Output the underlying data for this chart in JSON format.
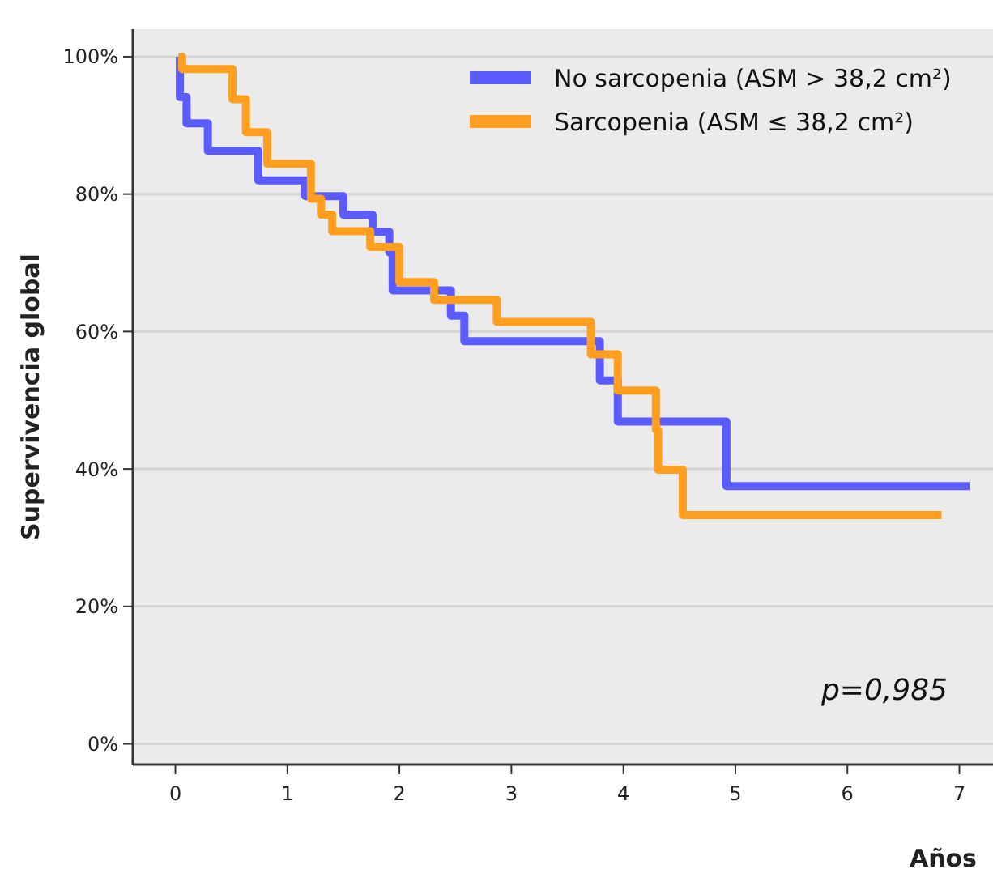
{
  "chart_data": {
    "type": "step",
    "xlabel": "Años",
    "ylabel": "Supervivencia global",
    "annotations": [
      "p=0,985"
    ],
    "xlim": [
      -0.38,
      7.3
    ],
    "ylim": [
      -3,
      104
    ],
    "xticks": [
      0,
      1,
      2,
      3,
      4,
      5,
      6,
      7
    ],
    "yticks": [
      {
        "value": 0,
        "label": "0%"
      },
      {
        "value": 20,
        "label": "20%"
      },
      {
        "value": 40,
        "label": "40%"
      },
      {
        "value": 60,
        "label": "60%"
      },
      {
        "value": 80,
        "label": "80%"
      },
      {
        "value": 100,
        "label": "100%"
      }
    ],
    "grid": "y",
    "legend": "top right",
    "series": [
      {
        "name": "No sarcopenia (ASM > 38,2 cm²)",
        "color": "#5b5bff",
        "x": [
          0.03,
          0.04,
          0.1,
          0.29,
          0.74,
          1.16,
          1.5,
          1.76,
          1.91,
          1.94,
          2.46,
          2.58,
          3.79,
          3.95,
          4.92,
          7.09
        ],
        "values": [
          100,
          94.1,
          90.3,
          86.3,
          82,
          79.7,
          77,
          74.5,
          71.5,
          66,
          62.3,
          58.6,
          52.9,
          46.9,
          37.5,
          37.5
        ]
      },
      {
        "name": "Sarcopenia (ASM ≤ 38,2 cm²)",
        "color": "#ff9e1f",
        "x": [
          0.03,
          0.06,
          0.51,
          0.63,
          0.82,
          1.21,
          1.3,
          1.4,
          1.74,
          2.0,
          2.31,
          2.87,
          3.71,
          3.95,
          4.29,
          4.31,
          4.53,
          6.84
        ],
        "values": [
          100,
          98.2,
          93.8,
          89,
          84.4,
          79.3,
          77,
          74.6,
          72.3,
          67.2,
          64.6,
          61.4,
          56.7,
          51.4,
          45.7,
          39.9,
          33.3,
          33.3
        ]
      }
    ]
  }
}
